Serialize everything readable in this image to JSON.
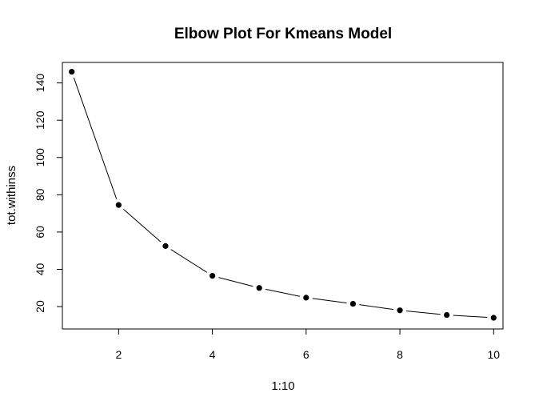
{
  "chart_data": {
    "type": "line",
    "title": "Elbow Plot For Kmeans Model",
    "xlabel": "1:10",
    "ylabel": "tot.withinss",
    "x": [
      1,
      2,
      3,
      4,
      5,
      6,
      7,
      8,
      9,
      10
    ],
    "y": [
      146,
      74.5,
      52.5,
      36.5,
      30,
      24.8,
      21.5,
      18,
      15.5,
      14
    ],
    "xlim": [
      0.8,
      10.2
    ],
    "ylim": [
      8,
      151
    ],
    "x_ticks": [
      "2",
      "4",
      "6",
      "8",
      "10"
    ],
    "y_ticks": [
      "20",
      "40",
      "60",
      "80",
      "100",
      "120",
      "140"
    ],
    "grid": false,
    "marker": "filled-circle",
    "line_style": "solid",
    "color": "#000000"
  }
}
